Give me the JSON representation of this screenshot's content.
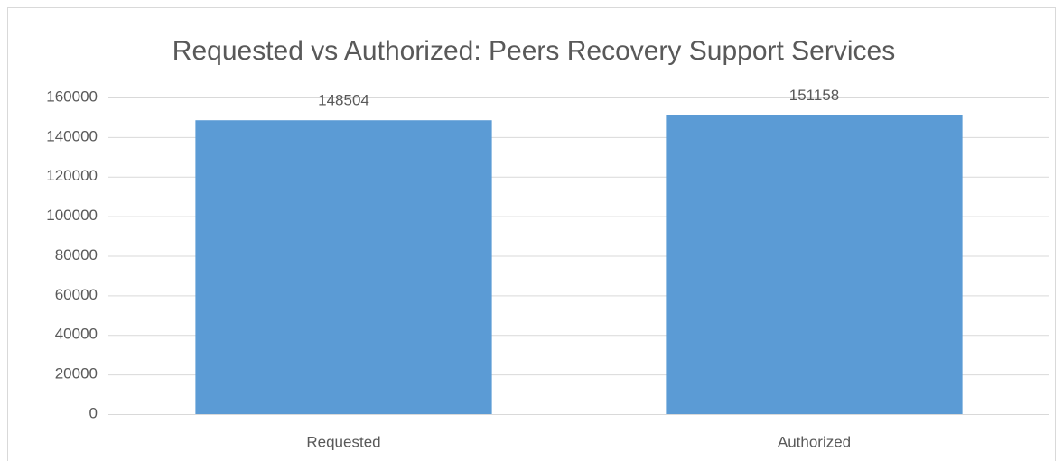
{
  "chart_data": {
    "type": "bar",
    "title": "Requested vs Authorized: Peers Recovery Support Services",
    "categories": [
      "Requested",
      "Authorized"
    ],
    "values": [
      148504,
      151158
    ],
    "color": "#5b9bd5",
    "ylim": [
      0,
      160000
    ],
    "yticks": [
      0,
      20000,
      40000,
      60000,
      80000,
      100000,
      120000,
      140000,
      160000
    ],
    "grid": true
  }
}
